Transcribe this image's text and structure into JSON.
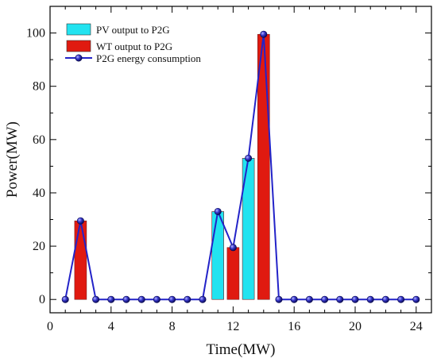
{
  "chart_data": {
    "type": "bar",
    "xlabel": "Time(MW)",
    "ylabel": "Power(MW)",
    "xlim": [
      0,
      25
    ],
    "ylim": [
      -5,
      110
    ],
    "xticks": [
      0,
      4,
      8,
      12,
      16,
      20,
      24
    ],
    "yticks": [
      0,
      20,
      40,
      60,
      80,
      100
    ],
    "grid": false,
    "legend_position": "top-left",
    "series": [
      {
        "name": "PV output to P2G",
        "type": "bar",
        "color": "#22e3f0",
        "points": [
          [
            11,
            33
          ],
          [
            13,
            53
          ]
        ]
      },
      {
        "name": "WT output to P2G",
        "type": "bar",
        "color": "#e01a10",
        "points": [
          [
            2,
            29.5
          ],
          [
            12,
            19.5
          ],
          [
            14,
            99.5
          ]
        ]
      },
      {
        "name": "P2G energy consumption",
        "type": "line",
        "color": "#2323c8",
        "x": [
          1,
          2,
          3,
          4,
          5,
          6,
          7,
          8,
          9,
          10,
          11,
          12,
          13,
          14,
          15,
          16,
          17,
          18,
          19,
          20,
          21,
          22,
          23,
          24
        ],
        "y": [
          0,
          29.5,
          0,
          0,
          0,
          0,
          0,
          0,
          0,
          0,
          33,
          19.5,
          53,
          99.5,
          0,
          0,
          0,
          0,
          0,
          0,
          0,
          0,
          0,
          0
        ]
      }
    ]
  }
}
